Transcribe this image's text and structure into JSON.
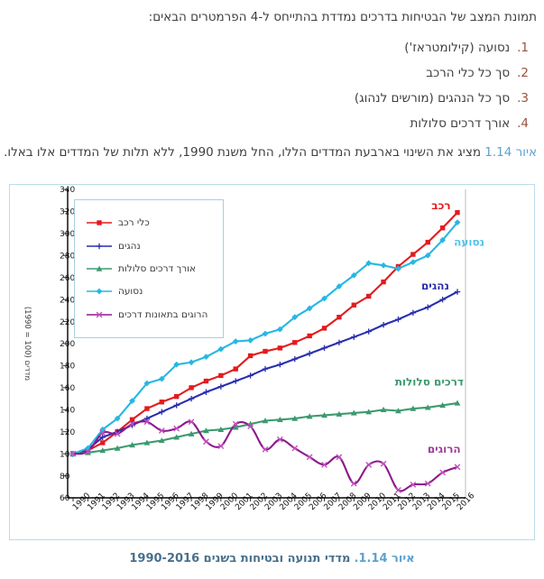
{
  "page": {
    "intro": "תמונת המצב של הבטיחות בדרכים נמדדת בהתייחס ל-4 הפרמטרים הבאים:",
    "list": [
      {
        "num": "1.",
        "text": "נסועה (קילומטראז')"
      },
      {
        "num": "2.",
        "text": "סך כל כלי הרכב"
      },
      {
        "num": "3.",
        "text": "סך כל הנהגים (מורשים לנהוג)"
      },
      {
        "num": "4.",
        "text": "אורך דרכים סלולות"
      }
    ],
    "paragraph": {
      "link": "איור 1.14",
      "rest": " מציג את השינוי בארבעת המדדים הללו, החל משנת 1990, ללא תלות של המדדים אלו באלו."
    },
    "caption": {
      "prefix": "איור 1.14.",
      "text": "מדדי תנועה ובטיחות בשנים 1990-2016"
    }
  },
  "colors": {
    "accent_link_blue": "#5ba3d0",
    "caption_text_blue": "#48708c",
    "list_number_brown": "#9c523e",
    "chart_border_blue": "#b9dcea",
    "legend_border_blue": "#a8cfe0"
  },
  "chart_data": {
    "type": "line",
    "x": [
      1990,
      1991,
      1992,
      1993,
      1994,
      1995,
      1996,
      1997,
      1998,
      1999,
      2000,
      2001,
      2002,
      2003,
      2004,
      2005,
      2006,
      2007,
      2008,
      2009,
      2010,
      2011,
      2012,
      2013,
      2014,
      2015,
      2016
    ],
    "ylim": [
      60,
      340
    ],
    "ytick_step": 20,
    "ylabel": "מדדים (100 = 1990)",
    "grid": false,
    "legend_position": "top-left",
    "series": [
      {
        "key": "vehicles",
        "name": "כלי רכב",
        "color": "#e31b1e",
        "marker": "square",
        "smooth": false,
        "values": [
          100,
          103,
          110,
          120,
          131,
          141,
          147,
          152,
          160,
          166,
          171,
          177,
          189,
          193,
          196,
          201,
          207,
          214,
          224,
          235,
          243,
          256,
          270,
          281,
          292,
          305,
          319
        ]
      },
      {
        "key": "drivers",
        "name": "נהגים",
        "color": "#2a2fae",
        "marker": "plus",
        "smooth": false,
        "values": [
          100,
          104,
          115,
          120,
          126,
          132,
          138,
          144,
          150,
          156,
          161,
          166,
          171,
          177,
          181,
          186,
          191,
          196,
          201,
          206,
          211,
          217,
          222,
          228,
          233,
          240,
          247
        ]
      },
      {
        "key": "paved_roads",
        "name": "אורך דרכים סלולות",
        "color": "#3c9a6e",
        "marker": "triangle",
        "smooth": false,
        "values": [
          100,
          101,
          103,
          105,
          108,
          110,
          112,
          115,
          118,
          121,
          122,
          124,
          127,
          130,
          131,
          132,
          134,
          135,
          136,
          137,
          138,
          140,
          139,
          141,
          142,
          144,
          146
        ]
      },
      {
        "key": "mileage",
        "name": "נסועה",
        "color": "#27b7e3",
        "marker": "diamond",
        "smooth": false,
        "values": [
          100,
          105,
          122,
          132,
          148,
          164,
          168,
          181,
          183,
          188,
          195,
          202,
          203,
          209,
          213,
          224,
          232,
          241,
          252,
          262,
          273,
          271,
          268,
          274,
          280,
          294,
          310
        ]
      },
      {
        "key": "fatalities",
        "name": "הרוגים בתאונות דרכים",
        "color": "#8c188c",
        "marker": "xcross",
        "marker_color": "#c44fc0",
        "smooth": true,
        "values": [
          100,
          102,
          119,
          118,
          127,
          129,
          121,
          123,
          129,
          111,
          107,
          127,
          125,
          104,
          113,
          105,
          97,
          90,
          97,
          73,
          90,
          91,
          67,
          72,
          73,
          83,
          88
        ]
      }
    ],
    "annotations": [
      {
        "key": "vehicles",
        "text": "רכב",
        "year": 2014.9,
        "value": 322,
        "color": "#e31b1e"
      },
      {
        "key": "mileage",
        "text": "נסועה",
        "year": 2016.8,
        "value": 289,
        "color": "#54c2ea"
      },
      {
        "key": "drivers",
        "text": "נהגים",
        "year": 2014.5,
        "value": 249,
        "color": "#2a2fae"
      },
      {
        "key": "paved_roads",
        "text": "דרכים סלולות",
        "year": 2014.1,
        "value": 162,
        "color": "#3c9a6e"
      },
      {
        "key": "fatalities",
        "text": "הרוגים",
        "year": 2015.1,
        "value": 101,
        "color": "#9c3d99"
      }
    ]
  }
}
